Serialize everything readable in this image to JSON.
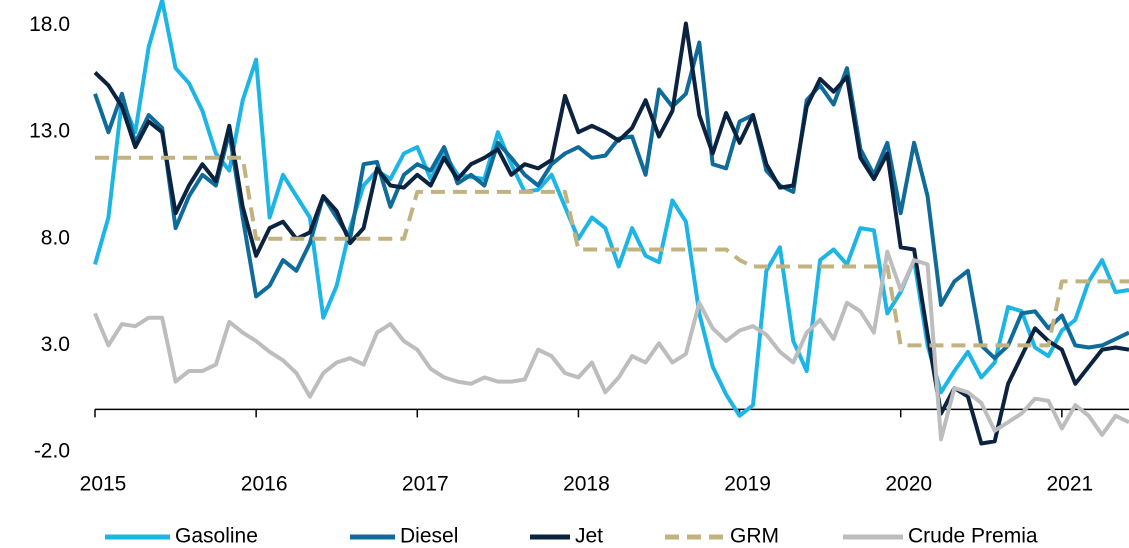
{
  "chart_data": {
    "type": "line",
    "x": [
      0,
      1,
      2,
      3,
      4,
      5,
      6,
      7,
      8,
      9,
      10,
      11,
      12,
      13,
      14,
      15,
      16,
      17,
      18,
      19,
      20,
      21,
      22,
      23,
      24,
      25,
      26,
      27,
      28,
      29,
      30,
      31,
      32,
      33,
      34,
      35,
      36,
      37,
      38,
      39,
      40,
      41,
      42,
      43,
      44,
      45,
      46,
      47,
      48,
      49,
      50,
      51,
      52,
      53,
      54,
      55,
      56,
      57,
      58,
      59,
      60,
      61,
      62,
      63,
      64,
      65,
      66,
      67,
      68,
      69,
      70,
      71,
      72,
      73,
      74,
      75,
      76,
      77
    ],
    "xlim": [
      0,
      77
    ],
    "xticks": [
      {
        "value": 0,
        "label": "2015"
      },
      {
        "value": 12,
        "label": "2016"
      },
      {
        "value": 24,
        "label": "2017"
      },
      {
        "value": 36,
        "label": "2018"
      },
      {
        "value": 48,
        "label": "2019"
      },
      {
        "value": 60,
        "label": "2020"
      },
      {
        "value": 72,
        "label": "2021"
      }
    ],
    "ylim": [
      -2,
      19.2
    ],
    "yticks": [
      {
        "value": 18,
        "label": "18.0"
      },
      {
        "value": 13,
        "label": "13.0"
      },
      {
        "value": 8,
        "label": "8.0"
      },
      {
        "value": 3,
        "label": "3.0"
      },
      {
        "value": -2,
        "label": "-2.0"
      }
    ],
    "legend": "bottom",
    "series": [
      {
        "name": "Gasoline",
        "color": "#1cb5e6",
        "line_style": "solid",
        "values": [
          6.8,
          9.0,
          14.5,
          13.0,
          17.0,
          19.2,
          16.0,
          15.3,
          14.0,
          12.0,
          11.2,
          14.5,
          16.4,
          9.0,
          11.0,
          10.0,
          9.0,
          4.3,
          5.8,
          8.5,
          10.5,
          11.2,
          10.8,
          12.0,
          12.3,
          10.8,
          12.0,
          11.0,
          10.9,
          10.8,
          13.0,
          11.5,
          10.2,
          10.3,
          11.0,
          9.5,
          8.0,
          9.0,
          8.5,
          6.7,
          8.5,
          7.2,
          6.9,
          9.8,
          8.8,
          4.5,
          2.0,
          0.7,
          -0.3,
          0.2,
          6.5,
          7.6,
          3.2,
          1.8,
          7.0,
          7.5,
          6.8,
          8.5,
          8.4,
          4.5,
          5.5,
          7.0,
          3.0,
          0.8,
          1.8,
          2.7,
          1.5,
          2.2,
          4.8,
          4.6,
          2.9,
          2.5,
          3.7,
          4.2,
          6.0,
          7.0,
          5.5,
          5.6
        ]
      },
      {
        "name": "Diesel",
        "color": "#0f6b99",
        "line_style": "solid",
        "values": [
          14.8,
          13.0,
          14.8,
          12.5,
          13.8,
          13.2,
          8.5,
          10.0,
          11.0,
          10.5,
          13.0,
          9.0,
          5.3,
          5.8,
          7.0,
          6.5,
          7.8,
          10.0,
          9.0,
          8.0,
          11.5,
          11.6,
          9.5,
          11.0,
          11.5,
          11.2,
          12.3,
          10.6,
          11.0,
          10.5,
          12.5,
          11.8,
          11.0,
          10.5,
          11.5,
          12.0,
          12.3,
          11.8,
          11.9,
          12.7,
          12.8,
          11.0,
          15.0,
          14.2,
          14.8,
          17.2,
          11.5,
          11.3,
          13.5,
          13.8,
          11.2,
          10.5,
          10.2,
          14.5,
          15.2,
          14.3,
          16.0,
          12.2,
          11.0,
          12.5,
          9.2,
          12.5,
          10.0,
          4.9,
          6.0,
          6.5,
          3.0,
          2.4,
          3.0,
          4.5,
          4.6,
          3.8,
          4.4,
          3.0,
          2.9,
          3.0,
          3.3,
          3.6
        ]
      },
      {
        "name": "Jet",
        "color": "#0c2340",
        "line_style": "solid",
        "values": [
          15.8,
          15.2,
          14.2,
          12.3,
          13.5,
          13.0,
          9.2,
          10.5,
          11.5,
          10.7,
          13.3,
          9.5,
          7.2,
          8.5,
          8.8,
          8.0,
          8.3,
          10.0,
          9.3,
          7.8,
          8.5,
          11.3,
          10.5,
          10.4,
          11.0,
          10.5,
          11.8,
          10.8,
          11.5,
          11.8,
          12.2,
          11.0,
          11.5,
          11.3,
          11.7,
          14.7,
          13.0,
          13.3,
          13.0,
          12.6,
          13.2,
          14.5,
          12.8,
          14.0,
          18.1,
          13.8,
          12.0,
          13.9,
          12.5,
          13.8,
          11.5,
          10.4,
          10.5,
          14.2,
          15.5,
          14.9,
          15.6,
          11.8,
          10.8,
          12.0,
          7.6,
          7.5,
          3.5,
          -0.2,
          1.0,
          0.6,
          -1.6,
          -1.5,
          1.2,
          2.5,
          3.8,
          3.2,
          2.8,
          1.2,
          2.0,
          2.8,
          2.9,
          2.8
        ]
      },
      {
        "name": "GRM",
        "color": "#c2b280",
        "line_style": "dashed",
        "values": [
          11.8,
          11.8,
          11.8,
          11.8,
          11.8,
          11.8,
          11.8,
          11.8,
          11.8,
          11.8,
          11.8,
          11.8,
          8.0,
          8.0,
          8.0,
          8.0,
          8.0,
          8.0,
          8.0,
          8.0,
          8.0,
          8.0,
          8.0,
          8.0,
          10.2,
          10.2,
          10.2,
          10.2,
          10.2,
          10.2,
          10.2,
          10.2,
          10.2,
          10.2,
          10.2,
          10.2,
          7.5,
          7.5,
          7.5,
          7.5,
          7.5,
          7.5,
          7.5,
          7.5,
          7.5,
          7.5,
          7.5,
          7.5,
          7.0,
          6.7,
          6.7,
          6.7,
          6.7,
          6.7,
          6.7,
          6.7,
          6.7,
          6.7,
          6.7,
          6.7,
          3.0,
          3.0,
          3.0,
          3.0,
          3.0,
          3.0,
          3.0,
          3.0,
          3.0,
          3.0,
          3.0,
          3.0,
          6.0,
          6.0,
          6.0,
          6.0,
          6.0,
          6.0
        ]
      },
      {
        "name": "Crude Premia",
        "color": "#bdbdbd",
        "line_style": "solid",
        "values": [
          4.5,
          3.0,
          4.0,
          3.9,
          4.3,
          4.3,
          1.3,
          1.8,
          1.8,
          2.1,
          4.1,
          3.6,
          3.2,
          2.7,
          2.3,
          1.7,
          0.6,
          1.7,
          2.2,
          2.4,
          2.1,
          3.6,
          4.0,
          3.2,
          2.8,
          1.9,
          1.5,
          1.3,
          1.2,
          1.5,
          1.3,
          1.3,
          1.4,
          2.8,
          2.5,
          1.7,
          1.5,
          2.2,
          0.8,
          1.5,
          2.5,
          2.2,
          3.1,
          2.2,
          2.6,
          5.0,
          3.8,
          3.2,
          3.7,
          3.9,
          3.5,
          2.7,
          2.2,
          3.6,
          4.2,
          3.3,
          5.0,
          4.6,
          3.6,
          7.4,
          5.6,
          7.0,
          6.8,
          -1.4,
          1.0,
          0.8,
          0.3,
          -1.0,
          -0.6,
          -0.2,
          0.5,
          0.4,
          -0.9,
          0.2,
          -0.3,
          -1.2,
          -0.3,
          -0.6
        ]
      }
    ]
  }
}
